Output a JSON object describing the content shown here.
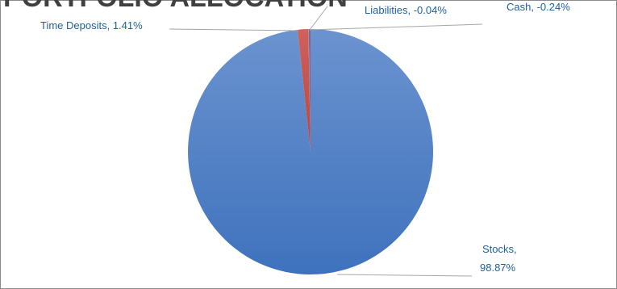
{
  "chart_data": {
    "type": "pie",
    "title": "PORTFOLIO ALLOCATION",
    "slices": [
      {
        "name": "Stocks",
        "value": 98.87,
        "display": "98.87%",
        "color": "#4a7ec6"
      },
      {
        "name": "Time Deposits",
        "value": 1.41,
        "display": "1.41%",
        "color": "#c0504d"
      },
      {
        "name": "Liabilities",
        "value": -0.04,
        "display": "-0.04%",
        "color": "#9bbb59"
      },
      {
        "name": "Cash",
        "value": -0.24,
        "display": "-0.24%",
        "color": "#8064a2"
      }
    ],
    "labels": {
      "time_deposits": "Time Deposits, 1.41%",
      "liabilities": "Liabilities, -0.04%",
      "cash": "Cash, -0.24%",
      "stocks_line1": "Stocks,",
      "stocks_line2": "98.87%"
    },
    "legend": "none"
  }
}
